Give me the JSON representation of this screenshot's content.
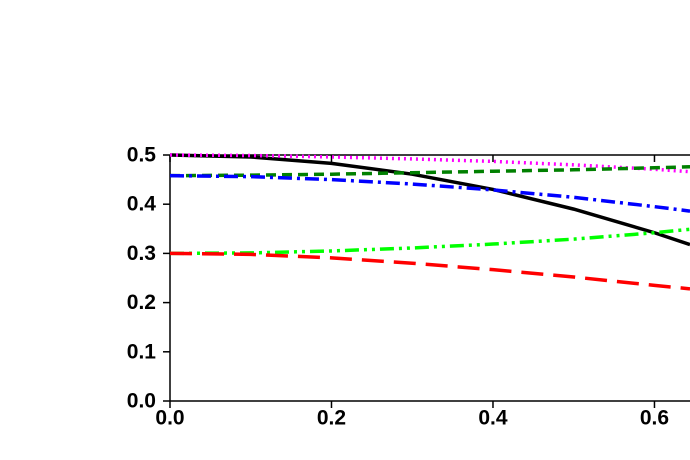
{
  "chart_data": {
    "type": "line",
    "x": [
      0,
      0.1,
      0.2,
      0.3,
      0.4,
      0.5,
      0.6,
      0.644
    ],
    "series": [
      {
        "color": "#000000",
        "style": "solid",
        "values": [
          0.5,
          0.496,
          0.483,
          0.461,
          0.43,
          0.39,
          0.342,
          0.318
        ]
      },
      {
        "color": "#ff00ff",
        "style": "dot",
        "values": [
          0.5,
          0.499,
          0.496,
          0.492,
          0.487,
          0.48,
          0.471,
          0.466
        ]
      },
      {
        "color": "#008000",
        "style": "dash",
        "values": [
          0.458,
          0.459,
          0.461,
          0.464,
          0.467,
          0.47,
          0.474,
          0.476
        ]
      },
      {
        "color": "#0000ff",
        "style": "dashdot",
        "values": [
          0.458,
          0.456,
          0.45,
          0.441,
          0.429,
          0.414,
          0.395,
          0.386
        ]
      },
      {
        "color": "#00ff00",
        "style": "dashdotdot",
        "values": [
          0.3,
          0.301,
          0.305,
          0.311,
          0.319,
          0.329,
          0.342,
          0.349
        ]
      },
      {
        "color": "#ff0000",
        "style": "longdash",
        "values": [
          0.3,
          0.298,
          0.291,
          0.28,
          0.267,
          0.252,
          0.235,
          0.228
        ]
      }
    ],
    "xlim": [
      0,
      0.644
    ],
    "ylim": [
      0,
      0.5
    ],
    "xticks": [
      {
        "value": 0,
        "label": "0.0"
      },
      0.2,
      0.4,
      0.6
    ],
    "yticks": [
      {
        "value": 0,
        "label": "0.0"
      },
      0.1,
      0.2,
      0.3,
      0.4,
      0.5
    ]
  }
}
